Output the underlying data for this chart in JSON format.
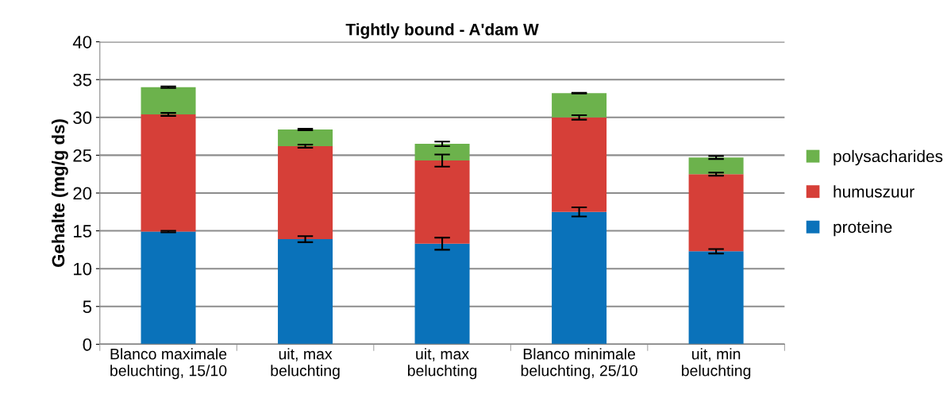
{
  "chart_data": {
    "type": "bar",
    "title": "Tightly bound - A'dam W",
    "ylabel": "Gehalte (mg/g ds)",
    "categories": [
      "Blanco maximale beluchting, 15/10",
      "uit, max beluchting",
      "uit, max beluchting",
      "Blanco minimale beluchting, 25/10",
      "uit, min beluchting"
    ],
    "stacked": true,
    "series": [
      {
        "name": "proteine",
        "color": "#0a72ba",
        "values": [
          14.9,
          13.9,
          13.3,
          17.5,
          12.3
        ],
        "errors": [
          0.1,
          0.4,
          0.8,
          0.6,
          0.3
        ]
      },
      {
        "name": "humuszuur",
        "color": "#d63f38",
        "values": [
          15.5,
          12.3,
          11.0,
          12.5,
          10.2
        ],
        "errors": [
          0.2,
          0.2,
          0.8,
          0.3,
          0.2
        ]
      },
      {
        "name": "polysacharides",
        "color": "#6cb24c",
        "values": [
          3.6,
          2.2,
          2.2,
          3.2,
          2.2
        ],
        "errors": [
          0.1,
          0.1,
          0.3,
          0.05,
          0.2
        ]
      }
    ],
    "ylim": [
      0,
      40
    ],
    "yticks": [
      0,
      5,
      10,
      15,
      20,
      25,
      30,
      35,
      40
    ],
    "grid": "y",
    "legend": "right"
  }
}
